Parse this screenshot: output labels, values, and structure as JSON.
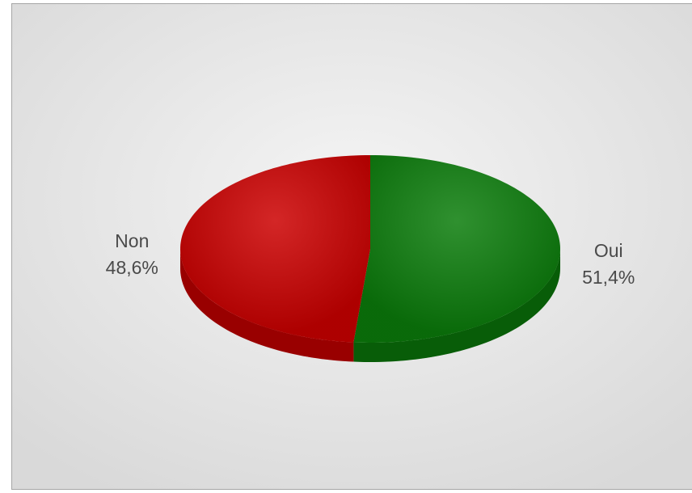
{
  "chart_data": {
    "type": "pie",
    "categories": [
      "Oui",
      "Non"
    ],
    "values": [
      51.4,
      48.6
    ],
    "value_labels": [
      "51,4%",
      "48,6%"
    ],
    "colors": [
      "#0b7d0b",
      "#cc0000"
    ]
  }
}
